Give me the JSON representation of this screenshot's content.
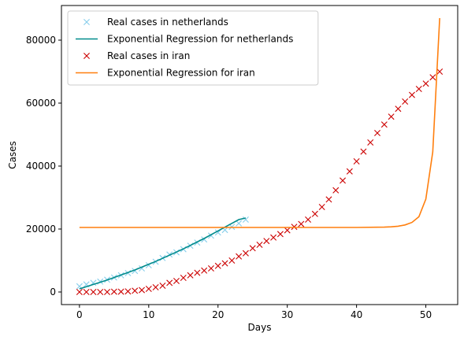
{
  "chart_data": {
    "type": "line",
    "title": "",
    "xlabel": "Days",
    "ylabel": "Cases",
    "xlim": [
      -2.6,
      54.6
    ],
    "ylim": [
      -4000,
      91000
    ],
    "xticks": [
      0,
      10,
      20,
      30,
      40,
      50
    ],
    "yticks": [
      0,
      20000,
      40000,
      60000,
      80000
    ],
    "grid": false,
    "legend_position": "top-left",
    "series": [
      {
        "name": "Real cases in netherlands",
        "kind": "scatter",
        "marker": "x",
        "color": "#87ceeb",
        "x": [
          0,
          1,
          2,
          3,
          4,
          5,
          6,
          7,
          8,
          9,
          10,
          11,
          12,
          13,
          14,
          15,
          16,
          17,
          18,
          19,
          20,
          21,
          22,
          23,
          24
        ],
        "y": [
          1800,
          2400,
          2900,
          3300,
          3900,
          4600,
          5300,
          6000,
          6700,
          7500,
          8500,
          9600,
          10800,
          11900,
          12600,
          13600,
          14700,
          15700,
          16700,
          17900,
          18900,
          19700,
          20700,
          21800,
          23000
        ]
      },
      {
        "name": "Exponential Regression for netherlands",
        "kind": "line",
        "color": "#008b8b",
        "x": [
          0,
          1,
          2,
          3,
          4,
          5,
          6,
          7,
          8,
          9,
          10,
          11,
          12,
          13,
          14,
          15,
          16,
          17,
          18,
          19,
          20,
          21,
          22,
          23,
          24
        ],
        "y": [
          1000,
          1700,
          2400,
          3100,
          3800,
          4600,
          5400,
          6200,
          7000,
          7900,
          8800,
          9700,
          10700,
          11700,
          12700,
          13700,
          14800,
          15900,
          17000,
          18200,
          19400,
          20600,
          21800,
          23000,
          23500
        ]
      },
      {
        "name": "Real cases in iran",
        "kind": "scatter",
        "marker": "x",
        "color": "#cc0000",
        "x": [
          0,
          1,
          2,
          3,
          4,
          5,
          6,
          7,
          8,
          9,
          10,
          11,
          12,
          13,
          14,
          15,
          16,
          17,
          18,
          19,
          20,
          21,
          22,
          23,
          24,
          25,
          26,
          27,
          28,
          29,
          30,
          31,
          32,
          33,
          34,
          35,
          36,
          37,
          38,
          39,
          40,
          41,
          42,
          43,
          44,
          45,
          46,
          47,
          48,
          49,
          50,
          51,
          52
        ],
        "y": [
          0,
          0,
          0,
          0,
          0,
          100,
          100,
          200,
          400,
          600,
          1000,
          1500,
          2000,
          2900,
          3500,
          4500,
          5300,
          6100,
          6800,
          7500,
          8300,
          9100,
          10000,
          11300,
          12300,
          13900,
          15000,
          16200,
          17300,
          18400,
          19600,
          20700,
          21600,
          23000,
          24800,
          27000,
          29400,
          32300,
          35400,
          38300,
          41500,
          44600,
          47500,
          50500,
          53200,
          55700,
          58200,
          60500,
          62600,
          64500,
          66200,
          68200,
          70000
        ]
      },
      {
        "name": "Exponential Regression for iran",
        "kind": "line",
        "color": "#ff7f0e",
        "x": [
          0,
          5,
          10,
          15,
          20,
          25,
          30,
          35,
          40,
          44,
          45,
          46,
          47,
          48,
          49,
          50,
          51,
          52
        ],
        "y": [
          20500,
          20500,
          20500,
          20500,
          20500,
          20500,
          20500,
          20500,
          20500,
          20600,
          20700,
          20900,
          21300,
          22100,
          23900,
          29500,
          44500,
          87000
        ]
      }
    ]
  }
}
